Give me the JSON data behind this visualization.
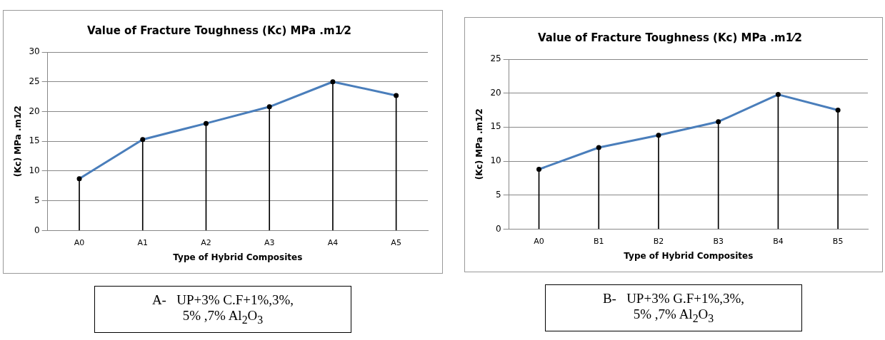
{
  "chart_data": [
    {
      "type": "line",
      "title": "Value of Fracture Toughness (Kc) MPa .m1⁄2",
      "xlabel": "Type of Hybrid Composites",
      "ylabel": "(Kc) MPa .m1⁄2",
      "categories": [
        "A0",
        "A1",
        "A2",
        "A3",
        "A4",
        "A5"
      ],
      "series": [
        {
          "color": "#4a7ebb",
          "values": [
            8.7,
            15.3,
            18.0,
            20.8,
            25.0,
            22.7
          ]
        },
        {
          "type": "lollipop",
          "color": "#000000",
          "values": [
            8.7,
            15.3,
            18.0,
            20.8,
            25.0,
            22.7
          ]
        }
      ],
      "ylim": [
        0,
        30
      ],
      "yticks": [
        0,
        5,
        10,
        15,
        20,
        25,
        30
      ],
      "grid": "y",
      "legend": false,
      "line_style": "solid",
      "annotations": [
        "A-   UP+3% C.F+1%,3%, 5% ,7% Al$_{2}$O$_{3}$"
      ]
    },
    {
      "type": "line",
      "title": "Value of Fracture Toughness (Kc) MPa .m1⁄2",
      "xlabel": "Type of Hybrid Composites",
      "ylabel": "(Kc) MPa .m1⁄2",
      "categories": [
        "A0",
        "B1",
        "B2",
        "B3",
        "B4",
        "B5"
      ],
      "series": [
        {
          "color": "#4a7ebb",
          "values": [
            8.8,
            12.0,
            13.8,
            15.8,
            19.8,
            17.5
          ]
        },
        {
          "type": "lollipop",
          "color": "#000000",
          "values": [
            8.8,
            12.0,
            13.8,
            15.8,
            19.8,
            17.5
          ]
        }
      ],
      "ylim": [
        0,
        25
      ],
      "yticks": [
        0,
        5,
        10,
        15,
        20,
        25
      ],
      "grid": "y",
      "legend": false,
      "line_style": "solid",
      "annotations": [
        "B-   UP+3% G.F+1%,3%, 5% ,7% Al$_{2}$O$_{3}$"
      ]
    }
  ]
}
